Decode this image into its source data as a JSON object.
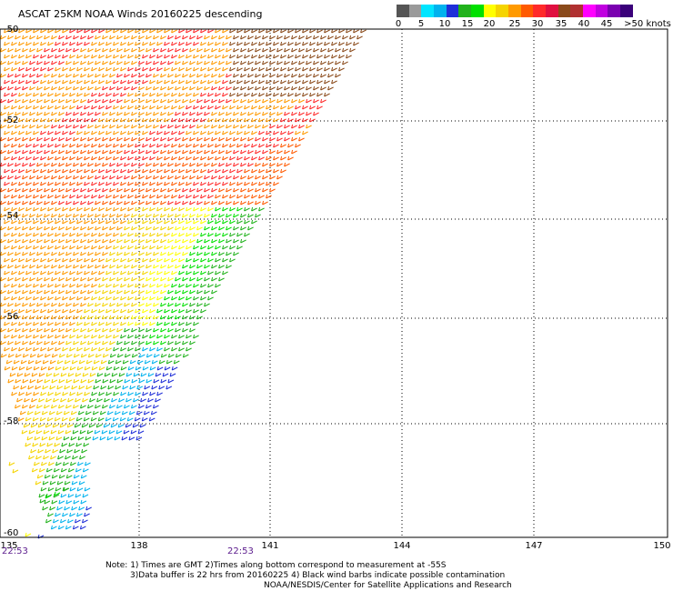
{
  "title": "ASCAT 25KM NOAA Winds 20160225 descending",
  "legend": {
    "colors": [
      "#555555",
      "#9a9a9a",
      "#00e5ff",
      "#00b2ee",
      "#1f2fd8",
      "#21b21c",
      "#00e000",
      "#ffff00",
      "#f5d400",
      "#ff9a00",
      "#ff5a00",
      "#ff2a2a",
      "#e01040",
      "#8a4a1a",
      "#b03030",
      "#ff00ff",
      "#c000e0",
      "#7a00b0",
      "#3a007a"
    ],
    "labels": [
      "0",
      "5",
      "10",
      "15",
      "20",
      "25",
      "30",
      "35",
      "40",
      "45",
      ">50 knots"
    ]
  },
  "lat_labels": [
    "-50",
    "-52",
    "-54",
    "-56",
    "-58",
    "-60"
  ],
  "lon_labels": [
    "135",
    "138",
    "141",
    "144",
    "147",
    "150"
  ],
  "time_labels": [
    "22:53",
    "22:53"
  ],
  "notes": [
    "Note: 1) Times are GMT 2)Times along bottom correspond to measurement at -55S",
    "3)Data buffer is 22 hrs from 20160225 4) Black wind barbs indicate possible contamination",
    "NOAA/NESDIS/Center for Satellite Applications and Research"
  ]
}
